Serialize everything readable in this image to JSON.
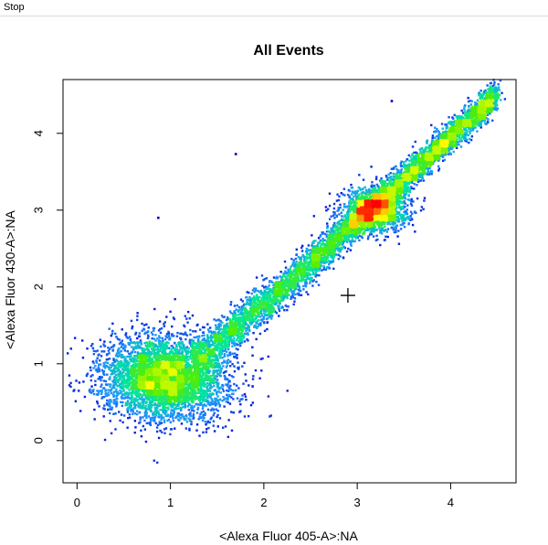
{
  "menubar": {
    "stop_label": "Stop"
  },
  "chart_data": {
    "type": "scatter",
    "title": "All Events",
    "xlabel": "<Alexa Fluor 405-A>:NA",
    "ylabel": "<Alexa Fluor 430-A>:NA",
    "xlim": [
      -0.15,
      4.7
    ],
    "ylim": [
      -0.55,
      4.7
    ],
    "x_ticks": [
      0,
      1,
      2,
      3,
      4
    ],
    "y_ticks": [
      0,
      1,
      2,
      3,
      4
    ],
    "colormap": [
      "#0000cc",
      "#1e90ff",
      "#00e5a0",
      "#55ee00",
      "#ffff00",
      "#ff8800",
      "#ff0000"
    ],
    "density_clusters": [
      {
        "x": 1.0,
        "y": 0.85,
        "intensity": "high"
      },
      {
        "x": 3.2,
        "y": 3.0,
        "intensity": "high"
      }
    ],
    "outliers": [
      {
        "x": 0.87,
        "y": 2.9
      },
      {
        "x": 1.7,
        "y": 3.73
      },
      {
        "x": 3.37,
        "y": 4.42
      }
    ],
    "cursor": {
      "x": 2.9,
      "y": 1.89
    }
  }
}
